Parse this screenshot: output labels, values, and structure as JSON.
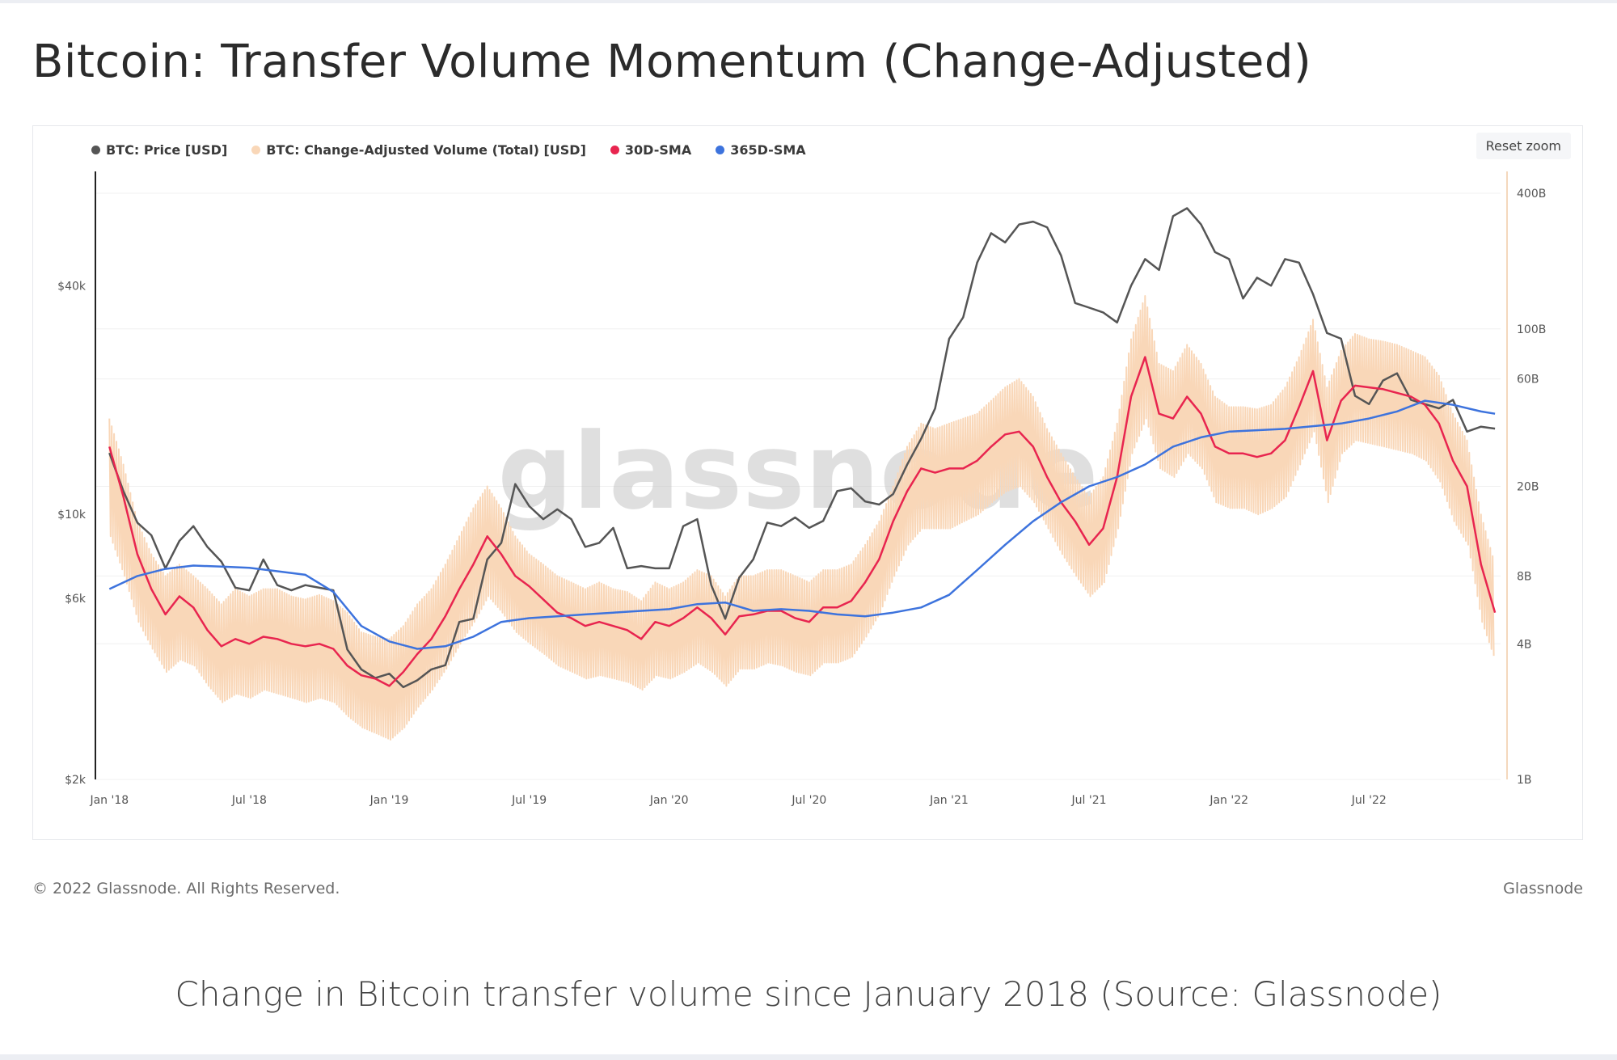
{
  "header": {
    "title": "Bitcoin: Transfer Volume Momentum (Change-Adjusted)"
  },
  "toolbar": {
    "reset_zoom_label": "Reset zoom"
  },
  "legend": [
    {
      "label": "BTC: Price [USD]",
      "color": "#555555"
    },
    {
      "label": "BTC: Change-Adjusted Volume (Total) [USD]",
      "color": "#f9d7b8"
    },
    {
      "label": "30D-SMA",
      "color": "#e8254f"
    },
    {
      "label": "365D-SMA",
      "color": "#3d73dd"
    }
  ],
  "watermark": "glassnode",
  "footer": {
    "copyright": "© 2022 Glassnode. All Rights Reserved.",
    "brand": "Glassnode"
  },
  "caption": "Change in Bitcoin transfer volume since January 2018 (Source: Glassnode)",
  "chart_data": {
    "type": "line",
    "title": "Bitcoin: Transfer Volume Momentum (Change-Adjusted)",
    "y_left": {
      "scale": "log",
      "range": [
        2000,
        80000
      ],
      "ticks": [
        "$2k",
        "$6k",
        "$10k",
        "$40k"
      ],
      "tick_values": [
        2000,
        6000,
        10000,
        40000
      ]
    },
    "y_right": {
      "scale": "log",
      "range": [
        1,
        500
      ],
      "ticks": [
        "1B",
        "4B",
        "8B",
        "20B",
        "60B",
        "100B",
        "400B"
      ],
      "tick_values": [
        1,
        4,
        8,
        20,
        60,
        100,
        400
      ]
    },
    "x_ticks": [
      "Jan '18",
      "Jul '18",
      "Jan '19",
      "Jul '19",
      "Jan '20",
      "Jul '20",
      "Jan '21",
      "Jul '21",
      "Jan '22",
      "Jul '22"
    ],
    "x_tick_values": [
      2018.0,
      2018.5,
      2019.0,
      2019.5,
      2020.0,
      2020.5,
      2021.0,
      2021.5,
      2022.0,
      2022.5
    ],
    "x_range": [
      2017.95,
      2022.97
    ],
    "grid": true,
    "legend_placement": "top-left",
    "series": [
      {
        "name": "BTC: Price [USD]",
        "axis": "left",
        "color": "#555555",
        "x": [
          2018.0,
          2018.05,
          2018.1,
          2018.15,
          2018.2,
          2018.25,
          2018.3,
          2018.35,
          2018.4,
          2018.45,
          2018.5,
          2018.55,
          2018.6,
          2018.65,
          2018.7,
          2018.75,
          2018.8,
          2018.85,
          2018.9,
          2018.95,
          2019.0,
          2019.05,
          2019.1,
          2019.15,
          2019.2,
          2019.25,
          2019.3,
          2019.35,
          2019.4,
          2019.45,
          2019.5,
          2019.55,
          2019.6,
          2019.65,
          2019.7,
          2019.75,
          2019.8,
          2019.85,
          2019.9,
          2019.95,
          2020.0,
          2020.05,
          2020.1,
          2020.15,
          2020.2,
          2020.25,
          2020.3,
          2020.35,
          2020.4,
          2020.45,
          2020.5,
          2020.55,
          2020.6,
          2020.65,
          2020.7,
          2020.75,
          2020.8,
          2020.85,
          2020.9,
          2020.95,
          2021.0,
          2021.05,
          2021.1,
          2021.15,
          2021.2,
          2021.25,
          2021.3,
          2021.35,
          2021.4,
          2021.45,
          2021.5,
          2021.55,
          2021.6,
          2021.65,
          2021.7,
          2021.75,
          2021.8,
          2021.85,
          2021.9,
          2021.95,
          2022.0,
          2022.05,
          2022.1,
          2022.15,
          2022.2,
          2022.25,
          2022.3,
          2022.35,
          2022.4,
          2022.45,
          2022.5,
          2022.55,
          2022.6,
          2022.65,
          2022.7,
          2022.75,
          2022.8,
          2022.85,
          2022.9,
          2022.95
        ],
        "values": [
          14500,
          11500,
          9500,
          8800,
          7200,
          8500,
          9300,
          8200,
          7500,
          6400,
          6300,
          7600,
          6500,
          6300,
          6500,
          6400,
          6300,
          4400,
          3900,
          3700,
          3800,
          3500,
          3650,
          3900,
          4000,
          5200,
          5300,
          7600,
          8400,
          12000,
          10500,
          9700,
          10300,
          9700,
          8200,
          8400,
          9200,
          7200,
          7300,
          7200,
          7200,
          9300,
          9700,
          6500,
          5300,
          6800,
          7600,
          9500,
          9300,
          9800,
          9200,
          9600,
          11500,
          11700,
          10800,
          10600,
          11300,
          13500,
          15800,
          19000,
          29000,
          33000,
          46000,
          55000,
          52000,
          58000,
          59000,
          57000,
          48000,
          36000,
          35000,
          34000,
          32000,
          40000,
          47000,
          44000,
          61000,
          64000,
          58000,
          49000,
          47000,
          37000,
          42000,
          40000,
          47000,
          46000,
          38000,
          30000,
          29000,
          20500,
          19500,
          22500,
          23500,
          20000,
          19500,
          19000,
          20000,
          16500,
          17000,
          16800
        ]
      },
      {
        "name": "30D-SMA",
        "axis": "right",
        "color": "#e8254f",
        "x": [
          2018.0,
          2018.05,
          2018.1,
          2018.15,
          2018.2,
          2018.25,
          2018.3,
          2018.35,
          2018.4,
          2018.45,
          2018.5,
          2018.55,
          2018.6,
          2018.65,
          2018.7,
          2018.75,
          2018.8,
          2018.85,
          2018.9,
          2018.95,
          2019.0,
          2019.05,
          2019.1,
          2019.15,
          2019.2,
          2019.25,
          2019.3,
          2019.35,
          2019.4,
          2019.45,
          2019.5,
          2019.55,
          2019.6,
          2019.65,
          2019.7,
          2019.75,
          2019.8,
          2019.85,
          2019.9,
          2019.95,
          2020.0,
          2020.05,
          2020.1,
          2020.15,
          2020.2,
          2020.25,
          2020.3,
          2020.35,
          2020.4,
          2020.45,
          2020.5,
          2020.55,
          2020.6,
          2020.65,
          2020.7,
          2020.75,
          2020.8,
          2020.85,
          2020.9,
          2020.95,
          2021.0,
          2021.05,
          2021.1,
          2021.15,
          2021.2,
          2021.25,
          2021.3,
          2021.35,
          2021.4,
          2021.45,
          2021.5,
          2021.55,
          2021.6,
          2021.65,
          2021.7,
          2021.75,
          2021.8,
          2021.85,
          2021.9,
          2021.95,
          2022.0,
          2022.05,
          2022.1,
          2022.15,
          2022.2,
          2022.25,
          2022.3,
          2022.35,
          2022.4,
          2022.45,
          2022.5,
          2022.55,
          2022.6,
          2022.65,
          2022.7,
          2022.75,
          2022.8,
          2022.85,
          2022.9,
          2022.95
        ],
        "values": [
          30,
          18,
          10,
          7,
          5.4,
          6.5,
          5.8,
          4.6,
          3.9,
          4.2,
          4.0,
          4.3,
          4.2,
          4.0,
          3.9,
          4.0,
          3.8,
          3.2,
          2.9,
          2.8,
          2.6,
          3.0,
          3.6,
          4.2,
          5.3,
          7,
          9,
          12,
          10,
          8,
          7.2,
          6.3,
          5.5,
          5.2,
          4.8,
          5,
          4.8,
          4.6,
          4.2,
          5,
          4.8,
          5.2,
          5.8,
          5.2,
          4.4,
          5.3,
          5.4,
          5.6,
          5.6,
          5.2,
          5.0,
          5.8,
          5.8,
          6.2,
          7.5,
          9.5,
          14,
          19,
          24,
          23,
          24,
          24,
          26,
          30,
          34,
          35,
          30,
          22,
          17,
          14,
          11,
          13,
          22,
          50,
          75,
          42,
          40,
          50,
          42,
          30,
          28,
          28,
          27,
          28,
          32,
          45,
          65,
          32,
          48,
          56,
          55,
          54,
          52,
          50,
          46,
          38,
          26,
          20,
          9,
          5.5
        ]
      },
      {
        "name": "365D-SMA",
        "axis": "right",
        "color": "#3d73dd",
        "x": [
          2018.0,
          2018.1,
          2018.2,
          2018.3,
          2018.4,
          2018.5,
          2018.6,
          2018.7,
          2018.8,
          2018.9,
          2019.0,
          2019.1,
          2019.2,
          2019.3,
          2019.4,
          2019.5,
          2019.6,
          2019.7,
          2019.8,
          2019.9,
          2020.0,
          2020.1,
          2020.2,
          2020.3,
          2020.4,
          2020.5,
          2020.6,
          2020.7,
          2020.8,
          2020.9,
          2021.0,
          2021.1,
          2021.2,
          2021.3,
          2021.4,
          2021.5,
          2021.6,
          2021.7,
          2021.8,
          2021.9,
          2022.0,
          2022.1,
          2022.2,
          2022.3,
          2022.4,
          2022.5,
          2022.6,
          2022.7,
          2022.8,
          2022.9,
          2022.95
        ],
        "values": [
          7,
          8,
          8.6,
          8.9,
          8.8,
          8.7,
          8.4,
          8.1,
          6.8,
          4.8,
          4.1,
          3.8,
          3.9,
          4.3,
          5.0,
          5.2,
          5.3,
          5.4,
          5.5,
          5.6,
          5.7,
          6.0,
          6.1,
          5.6,
          5.7,
          5.6,
          5.4,
          5.3,
          5.5,
          5.8,
          6.6,
          8.5,
          11,
          14,
          17,
          20,
          22,
          25,
          30,
          33,
          35,
          35.5,
          36,
          37,
          38,
          40,
          43,
          48,
          46,
          43,
          42
        ]
      },
      {
        "name": "BTC: Change-Adjusted Volume (Total) [USD]",
        "axis": "right",
        "color": "#f9d7b8",
        "x": [
          2018.0,
          2018.05,
          2018.1,
          2018.15,
          2018.2,
          2018.25,
          2018.3,
          2018.35,
          2018.4,
          2018.45,
          2018.5,
          2018.55,
          2018.6,
          2018.65,
          2018.7,
          2018.75,
          2018.8,
          2018.85,
          2018.9,
          2018.95,
          2019.0,
          2019.05,
          2019.1,
          2019.15,
          2019.2,
          2019.25,
          2019.3,
          2019.35,
          2019.4,
          2019.45,
          2019.5,
          2019.55,
          2019.6,
          2019.65,
          2019.7,
          2019.75,
          2019.8,
          2019.85,
          2019.9,
          2019.95,
          2020.0,
          2020.05,
          2020.1,
          2020.15,
          2020.2,
          2020.25,
          2020.3,
          2020.35,
          2020.4,
          2020.45,
          2020.5,
          2020.55,
          2020.6,
          2020.65,
          2020.7,
          2020.75,
          2020.8,
          2020.85,
          2020.9,
          2020.95,
          2021.0,
          2021.05,
          2021.1,
          2021.15,
          2021.2,
          2021.25,
          2021.3,
          2021.35,
          2021.4,
          2021.45,
          2021.5,
          2021.55,
          2021.6,
          2021.65,
          2021.7,
          2021.75,
          2021.8,
          2021.85,
          2021.9,
          2021.95,
          2022.0,
          2022.05,
          2022.1,
          2022.15,
          2022.2,
          2022.25,
          2022.3,
          2022.35,
          2022.4,
          2022.45,
          2022.5,
          2022.55,
          2022.6,
          2022.65,
          2022.7,
          2022.75,
          2022.8,
          2022.85,
          2022.9,
          2022.95
        ],
        "high": [
          40,
          25,
          14,
          10,
          8,
          9,
          8,
          7,
          6,
          7,
          6.5,
          7,
          7,
          6.5,
          6.3,
          6.6,
          6.2,
          5.5,
          4.5,
          4.3,
          4.2,
          4.8,
          6,
          7,
          9,
          12,
          16,
          20,
          16,
          12,
          10,
          9,
          8,
          7.5,
          7,
          7.5,
          7,
          6.8,
          6.2,
          7.5,
          7,
          7.5,
          8.5,
          8,
          6.5,
          8,
          8,
          8.5,
          8.5,
          8,
          7.5,
          8.5,
          8.5,
          9,
          11,
          14,
          20,
          30,
          38,
          36,
          38,
          40,
          42,
          48,
          55,
          60,
          50,
          36,
          28,
          22,
          18,
          22,
          38,
          90,
          140,
          70,
          65,
          85,
          70,
          50,
          45,
          45,
          44,
          46,
          55,
          75,
          110,
          55,
          80,
          95,
          90,
          88,
          85,
          80,
          75,
          62,
          42,
          32,
          15,
          9
        ],
        "low": [
          12,
          8,
          5,
          3.8,
          3,
          3.4,
          3.2,
          2.6,
          2.2,
          2.4,
          2.3,
          2.5,
          2.4,
          2.3,
          2.2,
          2.3,
          2.2,
          1.9,
          1.7,
          1.6,
          1.5,
          1.7,
          2.1,
          2.5,
          3.1,
          4,
          5,
          6.5,
          5.5,
          4.5,
          4,
          3.6,
          3.2,
          3,
          2.8,
          2.9,
          2.8,
          2.7,
          2.5,
          2.9,
          2.8,
          3,
          3.3,
          3,
          2.6,
          3.1,
          3.1,
          3.3,
          3.2,
          3,
          2.9,
          3.3,
          3.3,
          3.5,
          4.3,
          5.5,
          8,
          11,
          13,
          13,
          13,
          14,
          15,
          17,
          19,
          20,
          17,
          13,
          10,
          8,
          6.5,
          7.5,
          13,
          28,
          40,
          24,
          22,
          28,
          24,
          17,
          16,
          16,
          15,
          16,
          18,
          25,
          35,
          17,
          28,
          32,
          31,
          30,
          29,
          28,
          26,
          21,
          14,
          11,
          5,
          3.3
        ]
      }
    ]
  }
}
